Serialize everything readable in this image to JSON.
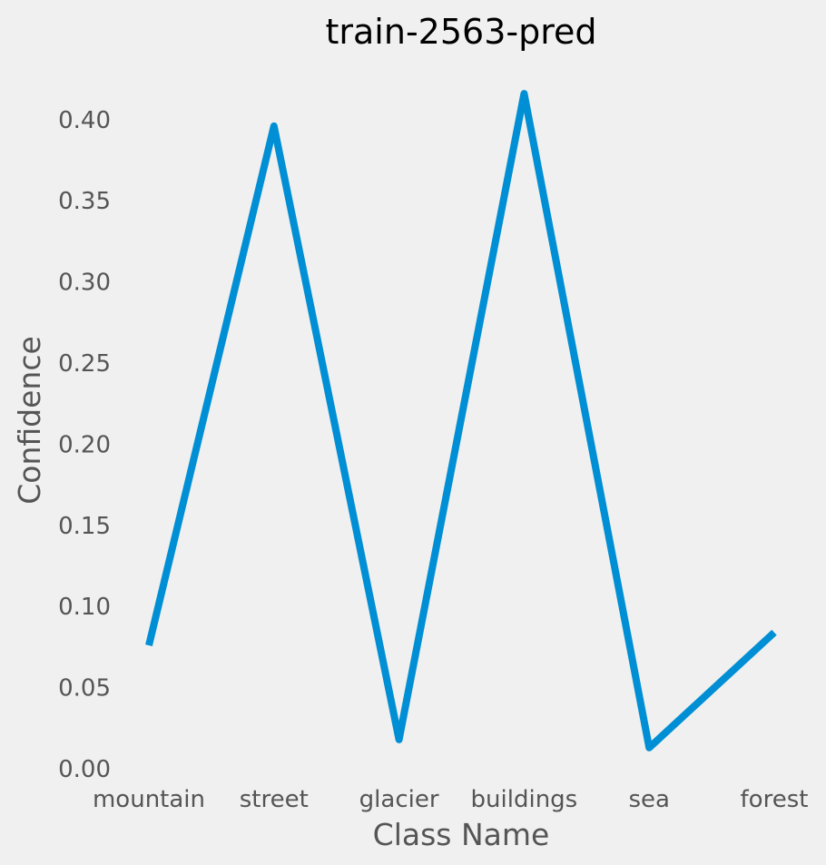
{
  "chart_data": {
    "type": "line",
    "title": "train-2563-pred",
    "xlabel": "Class Name",
    "ylabel": "Confidence",
    "categories": [
      "mountain",
      "street",
      "glacier",
      "buildings",
      "sea",
      "forest"
    ],
    "series": [
      {
        "values": [
          0.076,
          0.396,
          0.018,
          0.416,
          0.013,
          0.084
        ]
      }
    ],
    "ylim": [
      0,
      0.42
    ],
    "yticks": [
      "0.00",
      "0.05",
      "0.10",
      "0.15",
      "0.20",
      "0.25",
      "0.30",
      "0.35",
      "0.40"
    ],
    "grid": false
  },
  "colors": {
    "background": "#f0f0f0",
    "line": "#008fd5",
    "title": "#000000",
    "labels": "#555555"
  }
}
